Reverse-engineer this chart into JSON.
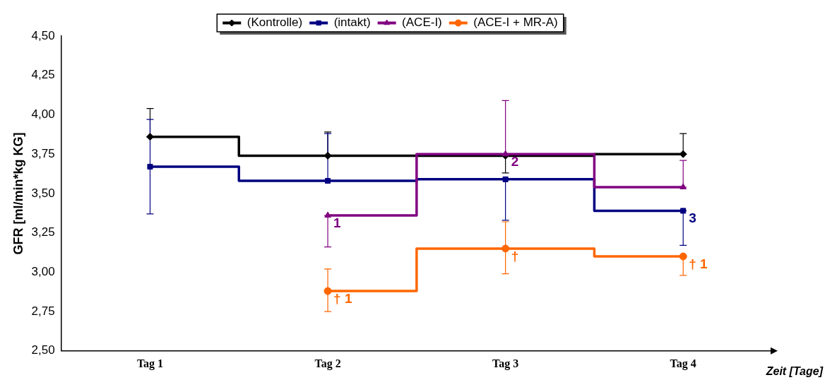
{
  "chart_data": {
    "type": "step",
    "ylabel": "GFR [ml/min*kg KG]",
    "xlabel": "Zeit [Tage]",
    "categories": [
      "Tag 1",
      "Tag 2",
      "Tag 3",
      "Tag 4"
    ],
    "ylim": [
      2.5,
      4.5
    ],
    "yticks": [
      {
        "value": 2.5,
        "label": "2,50"
      },
      {
        "value": 2.75,
        "label": "2,75"
      },
      {
        "value": 3.0,
        "label": "3,00"
      },
      {
        "value": 3.25,
        "label": "3,25"
      },
      {
        "value": 3.5,
        "label": "3,50"
      },
      {
        "value": 3.75,
        "label": "3,75"
      },
      {
        "value": 4.0,
        "label": "4,00"
      },
      {
        "value": 4.25,
        "label": "4,25"
      },
      {
        "value": 4.5,
        "label": "4,50"
      }
    ],
    "legend": "top",
    "grid": false,
    "series": [
      {
        "name": "(Kontrolle)",
        "color": "#000000",
        "marker": "diamond",
        "values": [
          3.86,
          3.74,
          3.74,
          3.75
        ],
        "errors": [
          [
            3.86,
            4.04
          ],
          [
            3.74,
            3.89
          ],
          [
            3.63,
            3.74
          ],
          [
            3.75,
            3.88
          ]
        ]
      },
      {
        "name": "(intakt)",
        "color": "#000080",
        "marker": "square",
        "values": [
          3.67,
          3.58,
          3.59,
          3.39
        ],
        "errors": [
          [
            3.37,
            3.97
          ],
          [
            3.58,
            3.88
          ],
          [
            3.33,
            3.59
          ],
          [
            3.17,
            3.39
          ]
        ]
      },
      {
        "name": "(ACE-I)",
        "color": "#800080",
        "marker": "triangle",
        "values": [
          null,
          3.36,
          3.75,
          3.54
        ],
        "errors": [
          null,
          [
            3.16,
            3.36
          ],
          [
            3.75,
            4.09
          ],
          [
            3.54,
            3.71
          ]
        ]
      },
      {
        "name": "(ACE-I + MR-A)",
        "color": "#ff6600",
        "marker": "circle",
        "values": [
          null,
          2.88,
          3.15,
          3.1
        ],
        "errors": [
          null,
          [
            2.75,
            3.02
          ],
          [
            2.99,
            3.32
          ],
          [
            2.98,
            3.1
          ]
        ]
      }
    ],
    "annotations": [
      {
        "text": "1",
        "x": "Tag 2",
        "y": 3.36
      },
      {
        "text": "2",
        "x": "Tag 3",
        "y": 3.75
      },
      {
        "text": "3",
        "x": "Tag 4",
        "y": 3.39
      },
      {
        "text": "† 1",
        "x": "Tag 2",
        "y": 2.88
      },
      {
        "text": "†",
        "x": "Tag 3",
        "y": 3.15
      },
      {
        "text": "† 1",
        "x": "Tag 4",
        "y": 3.1
      }
    ]
  }
}
